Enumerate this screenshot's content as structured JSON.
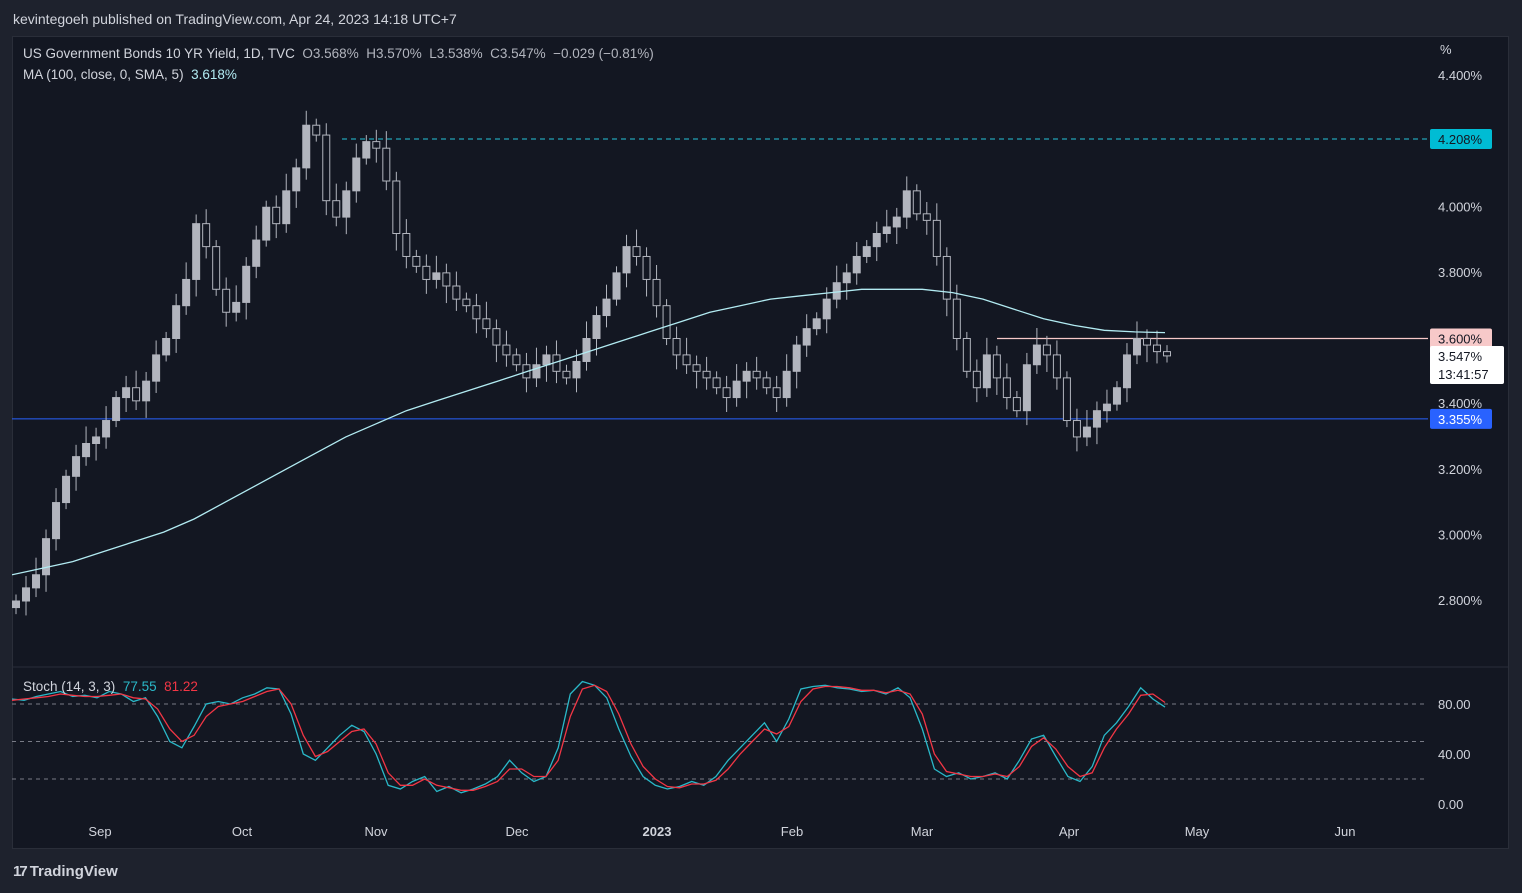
{
  "header": {
    "published_by": "kevintegoeh published on TradingView.com, Apr 24, 2023 14:18 UTC+7"
  },
  "legend": {
    "symbol": "US Government Bonds 10 YR Yield, 1D, TVC",
    "open": "O3.568%",
    "high": "H3.570%",
    "low": "L3.538%",
    "close": "C3.547%",
    "change": "−0.029 (−0.81%)",
    "ma_label": "MA (100, close, 0, SMA, 5)",
    "ma_value": "3.618%",
    "stoch_label": "Stoch (14, 3, 3)",
    "stoch_k": "77.55",
    "stoch_d": "81.22"
  },
  "footer": {
    "brand": "TradingView"
  },
  "colors": {
    "background": "#131722",
    "candle": "#b2b5be",
    "ma": "#b2ebf2",
    "resistance": "#f7c9c9",
    "support": "#2962ff",
    "upper_dashed": "#26c6da",
    "stoch_k": "#2ab8c8",
    "stoch_d": "#f23645"
  },
  "chart_data": [
    {
      "type": "candlestick",
      "title": "US Government Bonds 10 YR Yield",
      "ylabel": "%",
      "ylim": [
        2.75,
        4.42
      ],
      "yticks": [
        "4.400%",
        "4.000%",
        "3.800%",
        "3.400%",
        "3.200%",
        "3.000%",
        "2.800%"
      ],
      "xticks": [
        "Sep",
        "Oct",
        "Nov",
        "Dec",
        "2023",
        "Feb",
        "Mar",
        "Apr",
        "May",
        "Jun"
      ],
      "price_labels": {
        "resistance": "3.600%",
        "support": "3.355%",
        "upper": "4.208%",
        "last": "3.547%",
        "countdown": "13:41:57"
      },
      "levels": {
        "upper": 4.208,
        "resistance": 3.6,
        "support": 3.355,
        "last": 3.547
      },
      "close_path": [
        2.8,
        2.84,
        2.88,
        2.99,
        3.1,
        3.18,
        3.24,
        3.28,
        3.3,
        3.35,
        3.42,
        3.45,
        3.41,
        3.47,
        3.55,
        3.6,
        3.7,
        3.78,
        3.95,
        3.88,
        3.75,
        3.68,
        3.71,
        3.82,
        3.9,
        4.0,
        3.95,
        4.05,
        4.12,
        4.25,
        4.22,
        4.02,
        3.97,
        4.05,
        4.15,
        4.2,
        4.18,
        4.08,
        3.92,
        3.85,
        3.82,
        3.78,
        3.8,
        3.76,
        3.72,
        3.7,
        3.66,
        3.63,
        3.58,
        3.55,
        3.52,
        3.48,
        3.52,
        3.55,
        3.5,
        3.48,
        3.53,
        3.6,
        3.67,
        3.72,
        3.8,
        3.88,
        3.85,
        3.78,
        3.7,
        3.6,
        3.55,
        3.52,
        3.5,
        3.48,
        3.45,
        3.42,
        3.47,
        3.5,
        3.48,
        3.45,
        3.42,
        3.5,
        3.58,
        3.63,
        3.66,
        3.72,
        3.77,
        3.8,
        3.85,
        3.88,
        3.92,
        3.94,
        3.97,
        4.05,
        3.98,
        3.96,
        3.85,
        3.72,
        3.6,
        3.5,
        3.45,
        3.55,
        3.48,
        3.42,
        3.38,
        3.52,
        3.58,
        3.55,
        3.48,
        3.35,
        3.3,
        3.33,
        3.38,
        3.4,
        3.45,
        3.55,
        3.6,
        3.58,
        3.56,
        3.547
      ],
      "ma100_path": [
        2.88,
        2.9,
        2.92,
        2.95,
        2.98,
        3.01,
        3.05,
        3.1,
        3.15,
        3.2,
        3.25,
        3.3,
        3.34,
        3.38,
        3.41,
        3.44,
        3.47,
        3.5,
        3.53,
        3.56,
        3.59,
        3.62,
        3.65,
        3.68,
        3.7,
        3.72,
        3.73,
        3.74,
        3.75,
        3.75,
        3.75,
        3.74,
        3.72,
        3.69,
        3.66,
        3.64,
        3.625,
        3.62,
        3.618
      ]
    },
    {
      "type": "line",
      "title": "Stoch (14, 3, 3)",
      "ylim": [
        0,
        100
      ],
      "yticks": [
        "80.00",
        "40.00",
        "0.00"
      ],
      "bands": [
        80,
        50,
        20
      ],
      "series": [
        {
          "name": "%K",
          "values": [
            84,
            83,
            86,
            88,
            90,
            86,
            87,
            85,
            90,
            88,
            82,
            85,
            70,
            50,
            45,
            62,
            80,
            82,
            80,
            85,
            88,
            93,
            92,
            72,
            40,
            35,
            45,
            55,
            63,
            58,
            40,
            15,
            12,
            18,
            22,
            10,
            14,
            9,
            12,
            16,
            22,
            35,
            25,
            18,
            22,
            45,
            88,
            98,
            95,
            85,
            60,
            38,
            22,
            15,
            12,
            14,
            18,
            15,
            22,
            35,
            45,
            55,
            65,
            50,
            68,
            92,
            94,
            95,
            93,
            92,
            90,
            91,
            88,
            93,
            85,
            60,
            28,
            22,
            25,
            20,
            22,
            25,
            20,
            35,
            52,
            55,
            38,
            22,
            18,
            30,
            55,
            65,
            78,
            93,
            84,
            77.55
          ]
        },
        {
          "name": "%D",
          "values": [
            83,
            84,
            85,
            86,
            88,
            87,
            86,
            86,
            87,
            88,
            85,
            84,
            76,
            60,
            50,
            55,
            70,
            78,
            80,
            82,
            86,
            90,
            92,
            80,
            55,
            38,
            42,
            50,
            58,
            60,
            48,
            25,
            15,
            15,
            20,
            15,
            13,
            11,
            11,
            14,
            18,
            28,
            28,
            22,
            22,
            35,
            70,
            92,
            95,
            90,
            72,
            48,
            30,
            20,
            14,
            13,
            16,
            16,
            19,
            28,
            40,
            50,
            60,
            56,
            62,
            82,
            92,
            94,
            94,
            93,
            91,
            91,
            89,
            91,
            88,
            72,
            40,
            26,
            24,
            22,
            22,
            24,
            22,
            30,
            46,
            53,
            44,
            30,
            22,
            25,
            45,
            60,
            72,
            87,
            88,
            81.22
          ]
        }
      ]
    }
  ]
}
